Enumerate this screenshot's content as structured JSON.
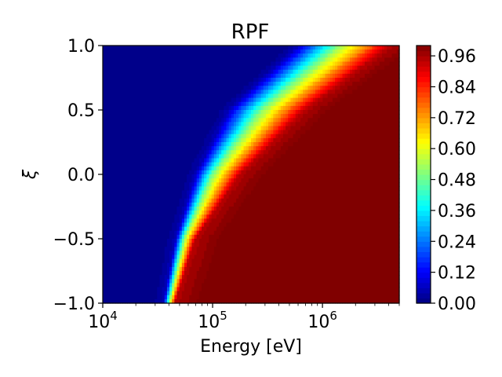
{
  "chart_data": {
    "type": "heatmap",
    "title": "RPF",
    "xlabel": "Energy [eV]",
    "ylabel": "ξ",
    "x_scale": "log",
    "xlim": [
      10000,
      5000000
    ],
    "ylim": [
      -1.0,
      1.0
    ],
    "x_ticks": [
      {
        "value": 10000,
        "base": "10",
        "exp": "4"
      },
      {
        "value": 100000,
        "base": "10",
        "exp": "5"
      },
      {
        "value": 1000000,
        "base": "10",
        "exp": "6"
      }
    ],
    "y_ticks": [
      {
        "value": -1.0,
        "label": "−1.0"
      },
      {
        "value": -0.5,
        "label": "−0.5"
      },
      {
        "value": 0.0,
        "label": "0.0"
      },
      {
        "value": 0.5,
        "label": "0.5"
      },
      {
        "value": 1.0,
        "label": "1.0"
      }
    ],
    "colormap": "jet",
    "colorbar": {
      "range": [
        0.0,
        1.0
      ],
      "ticks": [
        {
          "value": 0.0,
          "label": "0.00"
        },
        {
          "value": 0.12,
          "label": "0.12"
        },
        {
          "value": 0.24,
          "label": "0.24"
        },
        {
          "value": 0.36,
          "label": "0.36"
        },
        {
          "value": 0.48,
          "label": "0.48"
        },
        {
          "value": 0.6,
          "label": "0.60"
        },
        {
          "value": 0.72,
          "label": "0.72"
        },
        {
          "value": 0.84,
          "label": "0.84"
        },
        {
          "value": 0.96,
          "label": "0.96"
        }
      ]
    },
    "contour_lines": [
      {
        "level": 0.05,
        "points": [
          [
            35500,
            -1.0
          ],
          [
            46000,
            -0.5
          ],
          [
            70000,
            0.0
          ],
          [
            140000,
            0.5
          ],
          [
            600000,
            1.0
          ]
        ]
      },
      {
        "level": 0.5,
        "points": [
          [
            40000,
            -1.0
          ],
          [
            55000,
            -0.5
          ],
          [
            100000,
            0.0
          ],
          [
            280000,
            0.5
          ],
          [
            1400000,
            1.0
          ]
        ]
      },
      {
        "level": 0.95,
        "points": [
          [
            45500,
            -1.0
          ],
          [
            70000,
            -0.5
          ],
          [
            180000,
            0.0
          ],
          [
            700000,
            0.5
          ],
          [
            4200000,
            1.0
          ]
        ]
      }
    ]
  }
}
